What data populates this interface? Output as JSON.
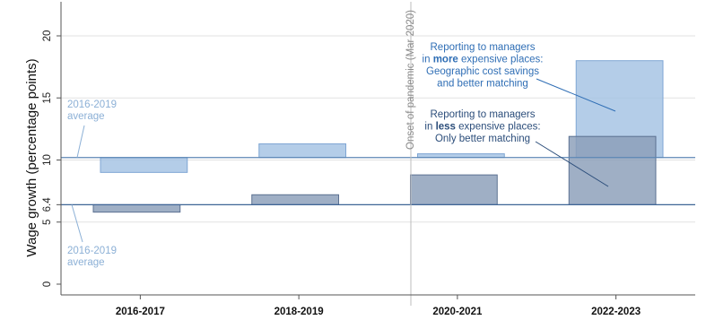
{
  "chart_data": {
    "type": "bar",
    "ylabel": "Wage growth (percentage points)",
    "ylim": [
      -0.5,
      22
    ],
    "yticks": [
      {
        "value": 0,
        "label": "0"
      },
      {
        "value": 5,
        "label": "5"
      },
      {
        "value": 6.4,
        "label": "6.4"
      },
      {
        "value": 10,
        "label": "10"
      },
      {
        "value": 15,
        "label": "15"
      },
      {
        "value": 20,
        "label": "20"
      }
    ],
    "categories": [
      "2016-2017",
      "2018-2019",
      "2020-2021",
      "2022-2023"
    ],
    "baselines": {
      "more_expensive_avg": 10.2,
      "less_expensive_avg": 6.4,
      "label_upper": [
        "2016-2019",
        "average"
      ],
      "label_lower": [
        "2016-2019",
        "average"
      ]
    },
    "series": [
      {
        "key": "more",
        "values": [
          9.0,
          11.3,
          10.5,
          18.0
        ],
        "color": "#a4c2e3",
        "edge": "#7fa6d4",
        "annotation": [
          [
            {
              "t": "Reporting to managers",
              "b": false
            }
          ],
          [
            {
              "t": "in ",
              "b": false
            },
            {
              "t": "more",
              "b": true
            },
            {
              "t": " expensive places:",
              "b": false
            }
          ],
          [
            {
              "t": "Geographic cost savings",
              "b": false
            }
          ],
          [
            {
              "t": "and better matching",
              "b": false
            }
          ]
        ]
      },
      {
        "key": "less",
        "values": [
          5.8,
          7.2,
          8.8,
          11.9
        ],
        "color": "#8a9db8",
        "edge": "#5b7091",
        "annotation": [
          [
            {
              "t": "Reporting to managers",
              "b": false
            }
          ],
          [
            {
              "t": "in ",
              "b": false
            },
            {
              "t": "less",
              "b": true
            },
            {
              "t": " expensive places:",
              "b": false
            }
          ],
          [
            {
              "t": "Only better matching",
              "b": false
            }
          ]
        ]
      }
    ],
    "vline_label": "Onset of pandemic (Mar 2020)",
    "grid": true
  },
  "colors": {
    "axis": "#555555",
    "grid": "#e2e2e2",
    "baseline": "#5b86b5",
    "pandemic_line": "#bdbdbd"
  }
}
